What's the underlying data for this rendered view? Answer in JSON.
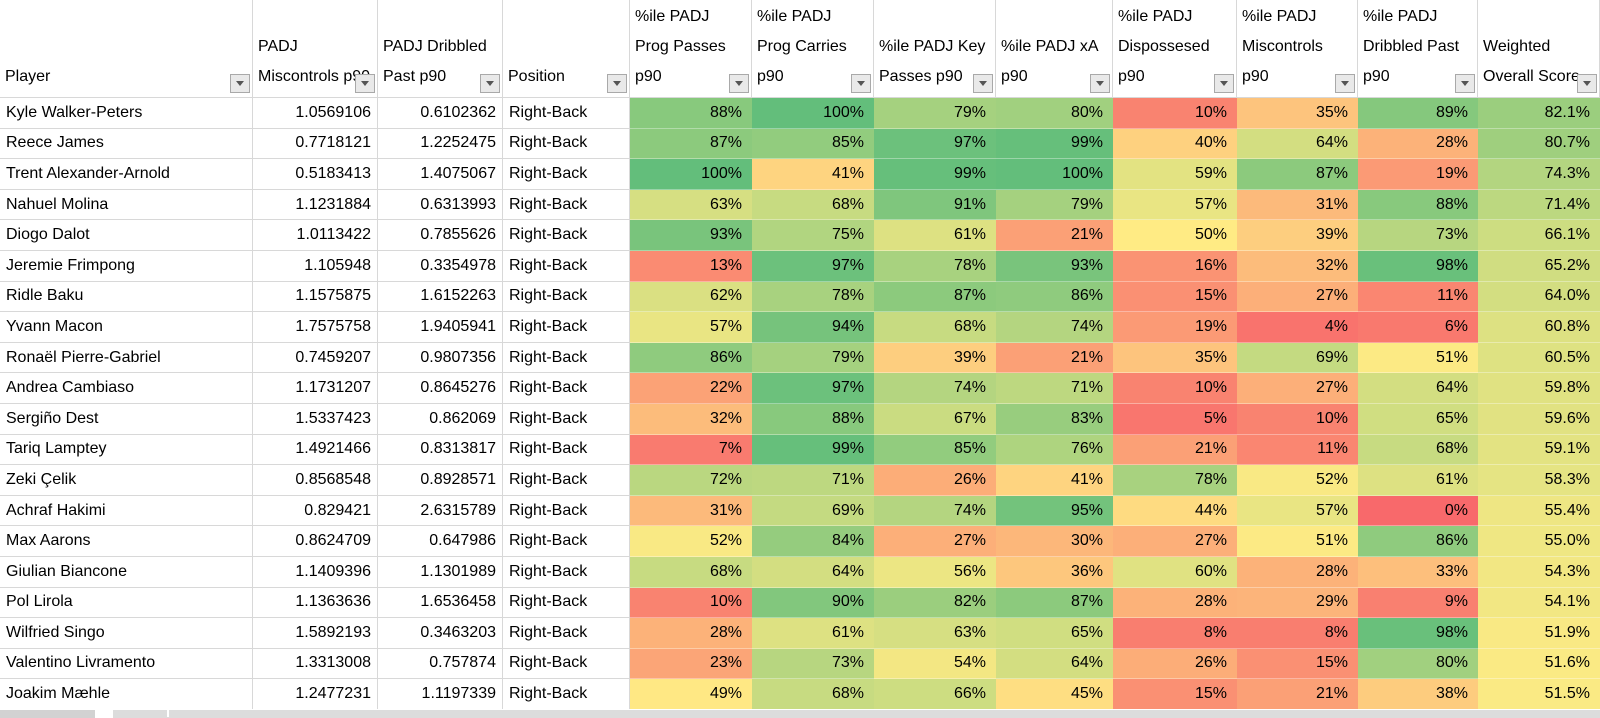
{
  "app": {
    "kind": "spreadsheet-table",
    "position_filter": "Right-Back"
  },
  "colors": {
    "scale_low": "#F8696B",
    "scale_mid": "#FFEB84",
    "scale_high": "#63BE7B",
    "gridline": "#D8D8D8",
    "scrollbar_track": "#DCDCDC",
    "scrollbar_thumb": "#D2D2D2"
  },
  "table": {
    "columns": [
      {
        "key": "player",
        "label": "Player",
        "type": "text"
      },
      {
        "key": "padj-miscontrols",
        "label": "PADJ Miscontrols p90",
        "type": "number"
      },
      {
        "key": "padj-dribbled-past",
        "label": "PADJ Dribbled Past p90",
        "type": "number"
      },
      {
        "key": "position",
        "label": "Position",
        "type": "text"
      },
      {
        "key": "pct-prog-passes",
        "label": "%ile PADJ Prog Passes p90",
        "type": "percent"
      },
      {
        "key": "pct-prog-carries",
        "label": "%ile PADJ Prog Carries p90",
        "type": "percent"
      },
      {
        "key": "pct-key-passes",
        "label": "%ile PADJ Key Passes p90",
        "type": "percent"
      },
      {
        "key": "pct-xa",
        "label": "%ile PADJ xA p90",
        "type": "percent"
      },
      {
        "key": "pct-dispossesed",
        "label": "%ile PADJ Dispossesed p90",
        "type": "percent"
      },
      {
        "key": "pct-miscontrols",
        "label": "%ile PADJ Miscontrols p90",
        "type": "percent"
      },
      {
        "key": "pct-dribbled-past",
        "label": "%ile PADJ Dribbled Past p90",
        "type": "percent"
      },
      {
        "key": "weighted-score",
        "label": "Weighted Overall Score",
        "type": "score"
      }
    ],
    "rows": [
      [
        "Kyle Walker-Peters",
        "1.0569106",
        "0.6102362",
        "Right-Back",
        88,
        100,
        79,
        80,
        10,
        35,
        89,
        82.1
      ],
      [
        "Reece James",
        "0.7718121",
        "1.2252475",
        "Right-Back",
        87,
        85,
        97,
        99,
        40,
        64,
        28,
        80.7
      ],
      [
        "Trent Alexander-Arnold",
        "0.5183413",
        "1.4075067",
        "Right-Back",
        100,
        41,
        99,
        100,
        59,
        87,
        19,
        74.3
      ],
      [
        "Nahuel Molina",
        "1.1231884",
        "0.6313993",
        "Right-Back",
        63,
        68,
        91,
        79,
        57,
        31,
        88,
        71.4
      ],
      [
        "Diogo Dalot",
        "1.0113422",
        "0.7855626",
        "Right-Back",
        93,
        75,
        61,
        21,
        50,
        39,
        73,
        66.1
      ],
      [
        "Jeremie Frimpong",
        "1.105948",
        "0.3354978",
        "Right-Back",
        13,
        97,
        78,
        93,
        16,
        32,
        98,
        65.2
      ],
      [
        "Ridle Baku",
        "1.1575875",
        "1.6152263",
        "Right-Back",
        62,
        78,
        87,
        86,
        15,
        27,
        11,
        64.0
      ],
      [
        "Yvann Macon",
        "1.7575758",
        "1.9405941",
        "Right-Back",
        57,
        94,
        68,
        74,
        19,
        4,
        6,
        60.8
      ],
      [
        "Ronaël Pierre-Gabriel",
        "0.7459207",
        "0.9807356",
        "Right-Back",
        86,
        79,
        39,
        21,
        35,
        69,
        51,
        60.5
      ],
      [
        "Andrea Cambiaso",
        "1.1731207",
        "0.8645276",
        "Right-Back",
        22,
        97,
        74,
        71,
        10,
        27,
        64,
        59.8
      ],
      [
        "Sergiño Dest",
        "1.5337423",
        "0.862069",
        "Right-Back",
        32,
        88,
        67,
        83,
        5,
        10,
        65,
        59.6
      ],
      [
        "Tariq Lamptey",
        "1.4921466",
        "0.8313817",
        "Right-Back",
        7,
        99,
        85,
        76,
        21,
        11,
        68,
        59.1
      ],
      [
        "Zeki Çelik",
        "0.8568548",
        "0.8928571",
        "Right-Back",
        72,
        71,
        26,
        41,
        78,
        52,
        61,
        58.3
      ],
      [
        "Achraf Hakimi",
        "0.829421",
        "2.6315789",
        "Right-Back",
        31,
        69,
        74,
        95,
        44,
        57,
        0,
        55.4
      ],
      [
        "Max Aarons",
        "0.8624709",
        "0.647986",
        "Right-Back",
        52,
        84,
        27,
        30,
        27,
        51,
        86,
        55.0
      ],
      [
        "Giulian Biancone",
        "1.1409396",
        "1.1301989",
        "Right-Back",
        68,
        64,
        56,
        36,
        60,
        28,
        33,
        54.3
      ],
      [
        "Pol Lirola",
        "1.1363636",
        "1.6536458",
        "Right-Back",
        10,
        90,
        82,
        87,
        28,
        29,
        9,
        54.1
      ],
      [
        "Wilfried Singo",
        "1.5892193",
        "0.3463203",
        "Right-Back",
        28,
        61,
        63,
        65,
        8,
        8,
        98,
        51.9
      ],
      [
        "Valentino Livramento",
        "1.3313008",
        "0.757874",
        "Right-Back",
        23,
        73,
        54,
        64,
        26,
        15,
        80,
        51.6
      ],
      [
        "Joakim Mæhle",
        "1.2477231",
        "1.1197339",
        "Right-Back",
        49,
        68,
        66,
        45,
        15,
        21,
        38,
        51.5
      ]
    ]
  }
}
